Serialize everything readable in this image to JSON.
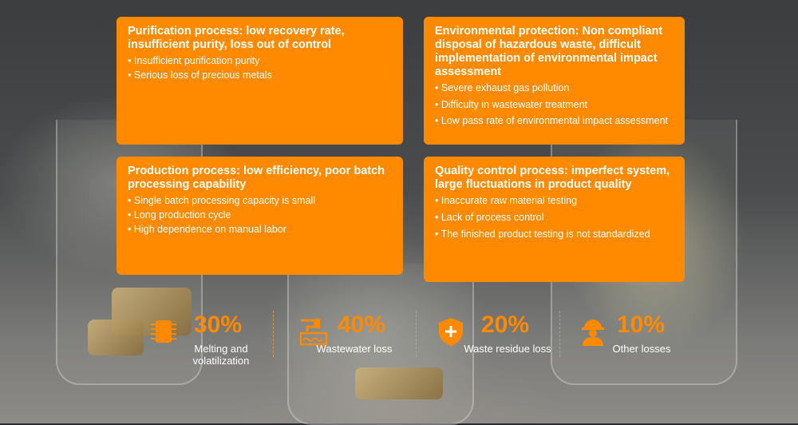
{
  "cards": [
    {
      "title": "Purification process: low recovery rate, insufficient purity, loss out of control",
      "items": [
        "Insufficient purification purity",
        "Serious loss of precious metals"
      ]
    },
    {
      "title": "Environmental protection: Non compliant disposal of hazardous waste, difficult implementation of environmental impact assessment",
      "items": [
        "Severe exhaust gas pollution",
        "Difficulty in wastewater treatment",
        "Low pass rate of environmental impact assessment"
      ]
    },
    {
      "title": "Production process: low efficiency, poor batch processing capability",
      "items": [
        "Single batch processing capacity is small",
        "Long production cycle",
        "High dependence on manual labor"
      ]
    },
    {
      "title": "Quality control process: imperfect system, large fluctuations in product quality",
      "items": [
        "Inaccurate raw material testing",
        "Lack of process control",
        "The finished product testing is not standardized"
      ]
    }
  ],
  "stats": [
    {
      "value": "30%",
      "label": "Melting and volatilization",
      "icon": "chip-icon"
    },
    {
      "value": "40%",
      "label": "Wastewater loss",
      "icon": "pipe-water-icon"
    },
    {
      "value": "20%",
      "label": "Waste residue loss",
      "icon": "shield-plus-icon"
    },
    {
      "value": "10%",
      "label": "Other losses",
      "icon": "worker-helmet-icon"
    }
  ],
  "colors": {
    "accent": "#ff8a00",
    "text": "#ffffff"
  }
}
